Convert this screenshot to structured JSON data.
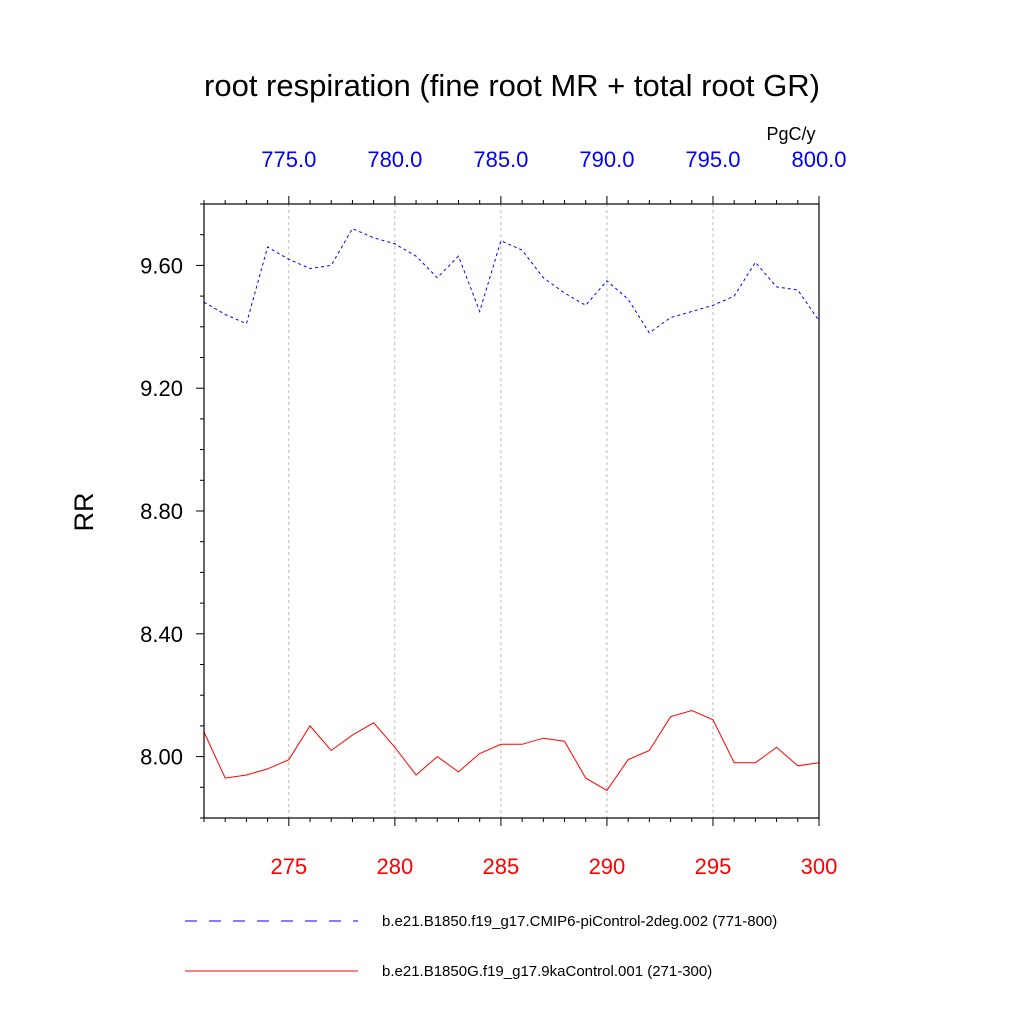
{
  "chart_data": {
    "type": "line",
    "title": "root respiration (fine root MR + total root GR)",
    "units": "PgC/y",
    "ylabel": "RR",
    "ylim": [
      7.8,
      9.8
    ],
    "yticks": [
      "8.00",
      "8.40",
      "8.80",
      "9.20",
      "9.60"
    ],
    "x_bottom": {
      "range": [
        271,
        300
      ],
      "ticks": [
        "275",
        "280",
        "285",
        "290",
        "295",
        "300"
      ],
      "color": "#ff0000"
    },
    "x_top": {
      "range": [
        771,
        800
      ],
      "ticks": [
        "775.0",
        "780.0",
        "785.0",
        "790.0",
        "795.0",
        "800.0"
      ],
      "color": "#0000ff"
    },
    "grid": "vertical dashed at major ticks",
    "series": [
      {
        "name": "b.e21.B1850.f19_g17.CMIP6-piControl-2deg.002 (771-800)",
        "axis": "top",
        "color": "#0000ff",
        "dash": "dashed",
        "x": [
          771,
          772,
          773,
          774,
          775,
          776,
          777,
          778,
          779,
          780,
          781,
          782,
          783,
          784,
          785,
          786,
          787,
          788,
          789,
          790,
          791,
          792,
          793,
          794,
          795,
          796,
          797,
          798,
          799,
          800
        ],
        "values": [
          9.48,
          9.44,
          9.41,
          9.66,
          9.62,
          9.59,
          9.6,
          9.72,
          9.69,
          9.67,
          9.63,
          9.56,
          9.63,
          9.45,
          9.68,
          9.65,
          9.56,
          9.51,
          9.47,
          9.55,
          9.49,
          9.38,
          9.43,
          9.45,
          9.47,
          9.5,
          9.61,
          9.53,
          9.52,
          9.42
        ]
      },
      {
        "name": "b.e21.B1850G.f19_g17.9kaControl.001 (271-300)",
        "axis": "bottom",
        "color": "#ff0000",
        "dash": "solid",
        "x": [
          271,
          272,
          273,
          274,
          275,
          276,
          277,
          278,
          279,
          280,
          281,
          282,
          283,
          284,
          285,
          286,
          287,
          288,
          289,
          290,
          291,
          292,
          293,
          294,
          295,
          296,
          297,
          298,
          299,
          300
        ],
        "values": [
          8.08,
          7.93,
          7.94,
          7.96,
          7.99,
          8.1,
          8.02,
          8.07,
          8.11,
          8.03,
          7.94,
          8.0,
          7.95,
          8.01,
          8.04,
          8.04,
          8.06,
          8.05,
          7.93,
          7.89,
          7.99,
          8.02,
          8.13,
          8.15,
          8.12,
          7.98,
          7.98,
          8.03,
          7.97,
          7.98
        ]
      }
    ],
    "legend_position": "bottom"
  }
}
